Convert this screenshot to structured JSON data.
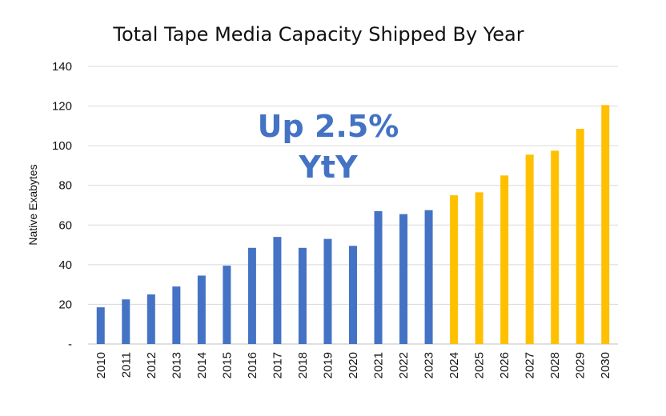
{
  "chart_data": {
    "type": "bar",
    "title": "Total Tape Media Capacity Shipped By Year",
    "ylabel": "Native  Exabytes",
    "xlabel": "",
    "ylim": [
      0,
      140
    ],
    "yticks": [
      0,
      20,
      40,
      60,
      80,
      100,
      120,
      140
    ],
    "ytick_labels": [
      "-",
      "20",
      "40",
      "60",
      "80",
      "100",
      "120",
      "140"
    ],
    "grid": true,
    "categories": [
      "2010",
      "2011",
      "2012",
      "2013",
      "2014",
      "2015",
      "2016",
      "2017",
      "2018",
      "2019",
      "2020",
      "2021",
      "2022",
      "2023",
      "2024",
      "2025",
      "2026",
      "2027",
      "2028",
      "2029",
      "2030"
    ],
    "values": [
      18.5,
      22.5,
      25,
      29,
      34.5,
      39.5,
      48.5,
      54,
      48.5,
      53,
      49.5,
      67,
      65.5,
      67.5,
      75,
      76.5,
      85,
      95.5,
      97.5,
      108.5,
      120.5
    ],
    "colors": {
      "actual": "#4472C4",
      "projected": "#FFC000",
      "annotation": "#4472C4"
    },
    "projected_from": "2024",
    "annotations": [
      "Up 2.5%",
      "YtY"
    ]
  }
}
